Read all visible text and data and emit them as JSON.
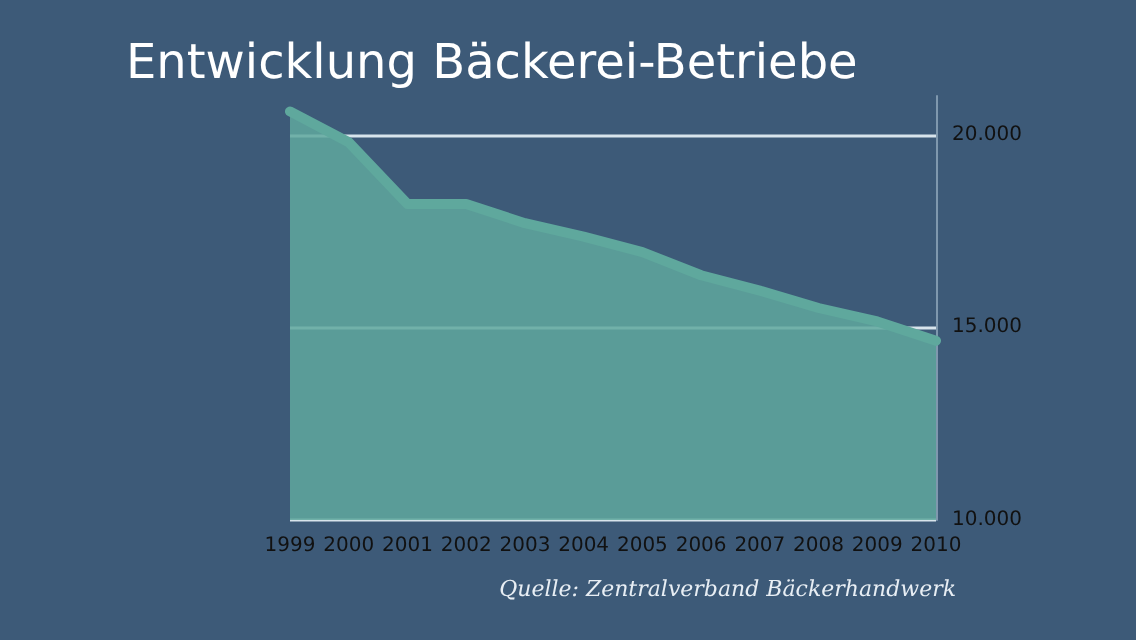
{
  "chart_data": {
    "type": "area",
    "title": "Entwicklung Bäckerei-Betriebe",
    "categories": [
      "1999",
      "2000",
      "2001",
      "2002",
      "2003",
      "2004",
      "2005",
      "2006",
      "2007",
      "2008",
      "2009",
      "2010"
    ],
    "series": [
      {
        "color": "#5fa89d",
        "values": [
          20600,
          19800,
          18200,
          18200,
          17700,
          17350,
          16950,
          16350,
          15950,
          15500,
          15150,
          14650
        ]
      }
    ],
    "ylim": [
      10000,
      21000
    ],
    "yticks": [
      {
        "value": 10000,
        "label": "10.000"
      },
      {
        "value": 15000,
        "label": "15.000"
      },
      {
        "value": 20000,
        "label": "20.000"
      }
    ],
    "grid": "y",
    "annotations": [
      "Quelle: Zentralverband Bäckerhandwerk"
    ]
  }
}
